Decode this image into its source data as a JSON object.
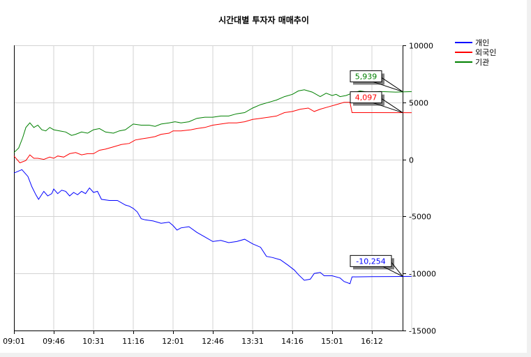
{
  "chart_data": {
    "type": "line",
    "title": "시간대별 투자자 매매추이",
    "x_tick_labels": [
      "09:01",
      "09:46",
      "10:31",
      "11:16",
      "12:01",
      "12:46",
      "13:31",
      "14:16",
      "15:01",
      "16:12"
    ],
    "ylim": [
      -15000,
      10000
    ],
    "y_ticks": [
      10000,
      5000,
      0,
      -5000,
      -10000,
      -15000
    ],
    "y_tick_labels": [
      "10000",
      "5000",
      "0",
      "-5000",
      "-10000",
      "-15000"
    ],
    "grid": true,
    "legend_position": "top-right",
    "x_index_max": 10,
    "series": [
      {
        "name": "개인",
        "color": "#0000ff",
        "label_value": -10254,
        "label_text": "-10,254",
        "points": [
          [
            0.0,
            -1200
          ],
          [
            0.2,
            -900
          ],
          [
            0.35,
            -1500
          ],
          [
            0.45,
            -2400
          ],
          [
            0.55,
            -3100
          ],
          [
            0.62,
            -3500
          ],
          [
            0.75,
            -2800
          ],
          [
            0.85,
            -3200
          ],
          [
            0.95,
            -3000
          ],
          [
            1.0,
            -2600
          ],
          [
            1.1,
            -3000
          ],
          [
            1.2,
            -2700
          ],
          [
            1.3,
            -2800
          ],
          [
            1.4,
            -3200
          ],
          [
            1.5,
            -2900
          ],
          [
            1.6,
            -3100
          ],
          [
            1.7,
            -2800
          ],
          [
            1.8,
            -3000
          ],
          [
            1.9,
            -2500
          ],
          [
            2.0,
            -2900
          ],
          [
            2.1,
            -2800
          ],
          [
            2.2,
            -3500
          ],
          [
            2.4,
            -3600
          ],
          [
            2.6,
            -3600
          ],
          [
            2.8,
            -4000
          ],
          [
            2.9,
            -4100
          ],
          [
            3.0,
            -4300
          ],
          [
            3.1,
            -4600
          ],
          [
            3.2,
            -5200
          ],
          [
            3.3,
            -5300
          ],
          [
            3.5,
            -5400
          ],
          [
            3.7,
            -5600
          ],
          [
            3.9,
            -5500
          ],
          [
            4.0,
            -5800
          ],
          [
            4.1,
            -6200
          ],
          [
            4.2,
            -6000
          ],
          [
            4.4,
            -5900
          ],
          [
            4.6,
            -6400
          ],
          [
            4.8,
            -6800
          ],
          [
            5.0,
            -7200
          ],
          [
            5.2,
            -7100
          ],
          [
            5.4,
            -7300
          ],
          [
            5.6,
            -7200
          ],
          [
            5.8,
            -7000
          ],
          [
            6.0,
            -7400
          ],
          [
            6.2,
            -7700
          ],
          [
            6.35,
            -8500
          ],
          [
            6.5,
            -8600
          ],
          [
            6.7,
            -8800
          ],
          [
            6.9,
            -9300
          ],
          [
            7.05,
            -9700
          ],
          [
            7.15,
            -10100
          ],
          [
            7.3,
            -10600
          ],
          [
            7.45,
            -10500
          ],
          [
            7.55,
            -10000
          ],
          [
            7.7,
            -9900
          ],
          [
            7.8,
            -10200
          ],
          [
            8.0,
            -10200
          ],
          [
            8.2,
            -10400
          ],
          [
            8.3,
            -10700
          ],
          [
            8.45,
            -10900
          ],
          [
            8.5,
            -10300
          ],
          [
            9.0,
            -10280
          ],
          [
            9.5,
            -10270
          ],
          [
            10.0,
            -10254
          ]
        ]
      },
      {
        "name": "외국인",
        "color": "#ff0000",
        "label_value": 4097,
        "label_text": "4,097",
        "points": [
          [
            0.0,
            300
          ],
          [
            0.15,
            -300
          ],
          [
            0.3,
            -100
          ],
          [
            0.4,
            400
          ],
          [
            0.5,
            100
          ],
          [
            0.6,
            100
          ],
          [
            0.75,
            0
          ],
          [
            0.9,
            200
          ],
          [
            1.0,
            100
          ],
          [
            1.1,
            300
          ],
          [
            1.25,
            200
          ],
          [
            1.4,
            500
          ],
          [
            1.55,
            600
          ],
          [
            1.7,
            400
          ],
          [
            1.85,
            500
          ],
          [
            2.0,
            500
          ],
          [
            2.15,
            800
          ],
          [
            2.3,
            900
          ],
          [
            2.5,
            1100
          ],
          [
            2.7,
            1300
          ],
          [
            2.9,
            1400
          ],
          [
            3.05,
            1700
          ],
          [
            3.2,
            1800
          ],
          [
            3.4,
            1900
          ],
          [
            3.55,
            2000
          ],
          [
            3.7,
            2200
          ],
          [
            3.9,
            2300
          ],
          [
            4.0,
            2500
          ],
          [
            4.2,
            2500
          ],
          [
            4.45,
            2600
          ],
          [
            4.6,
            2700
          ],
          [
            4.8,
            2800
          ],
          [
            5.0,
            3000
          ],
          [
            5.2,
            3100
          ],
          [
            5.4,
            3200
          ],
          [
            5.6,
            3200
          ],
          [
            5.8,
            3300
          ],
          [
            6.0,
            3500
          ],
          [
            6.2,
            3600
          ],
          [
            6.4,
            3700
          ],
          [
            6.6,
            3800
          ],
          [
            6.8,
            4100
          ],
          [
            7.0,
            4200
          ],
          [
            7.2,
            4400
          ],
          [
            7.4,
            4500
          ],
          [
            7.55,
            4200
          ],
          [
            7.7,
            4400
          ],
          [
            7.9,
            4600
          ],
          [
            8.1,
            4800
          ],
          [
            8.3,
            5000
          ],
          [
            8.45,
            5000
          ],
          [
            8.5,
            4100
          ],
          [
            9.0,
            4100
          ],
          [
            10.0,
            4097
          ]
        ]
      },
      {
        "name": "기관",
        "color": "#008000",
        "label_value": 5939,
        "label_text": "5,939",
        "points": [
          [
            0.0,
            600
          ],
          [
            0.12,
            1000
          ],
          [
            0.22,
            1900
          ],
          [
            0.3,
            2800
          ],
          [
            0.4,
            3200
          ],
          [
            0.5,
            2800
          ],
          [
            0.6,
            3000
          ],
          [
            0.7,
            2600
          ],
          [
            0.8,
            2500
          ],
          [
            0.9,
            2800
          ],
          [
            1.0,
            2600
          ],
          [
            1.15,
            2500
          ],
          [
            1.3,
            2400
          ],
          [
            1.45,
            2100
          ],
          [
            1.55,
            2200
          ],
          [
            1.7,
            2400
          ],
          [
            1.85,
            2300
          ],
          [
            2.0,
            2600
          ],
          [
            2.15,
            2700
          ],
          [
            2.3,
            2400
          ],
          [
            2.5,
            2300
          ],
          [
            2.65,
            2500
          ],
          [
            2.8,
            2600
          ],
          [
            3.0,
            3100
          ],
          [
            3.2,
            3000
          ],
          [
            3.4,
            3000
          ],
          [
            3.55,
            2900
          ],
          [
            3.7,
            3100
          ],
          [
            3.9,
            3200
          ],
          [
            4.05,
            3300
          ],
          [
            4.2,
            3200
          ],
          [
            4.4,
            3300
          ],
          [
            4.6,
            3600
          ],
          [
            4.8,
            3700
          ],
          [
            5.0,
            3700
          ],
          [
            5.2,
            3800
          ],
          [
            5.4,
            3800
          ],
          [
            5.6,
            4000
          ],
          [
            5.8,
            4100
          ],
          [
            6.0,
            4500
          ],
          [
            6.2,
            4800
          ],
          [
            6.4,
            5000
          ],
          [
            6.6,
            5200
          ],
          [
            6.8,
            5500
          ],
          [
            7.0,
            5700
          ],
          [
            7.15,
            6000
          ],
          [
            7.3,
            6100
          ],
          [
            7.5,
            5900
          ],
          [
            7.7,
            5500
          ],
          [
            7.85,
            5800
          ],
          [
            8.0,
            5600
          ],
          [
            8.1,
            5700
          ],
          [
            8.2,
            5500
          ],
          [
            8.35,
            5600
          ],
          [
            8.5,
            5800
          ],
          [
            8.7,
            6000
          ],
          [
            8.9,
            5900
          ],
          [
            9.2,
            5950
          ],
          [
            9.6,
            5900
          ],
          [
            10.0,
            5939
          ]
        ]
      }
    ]
  }
}
